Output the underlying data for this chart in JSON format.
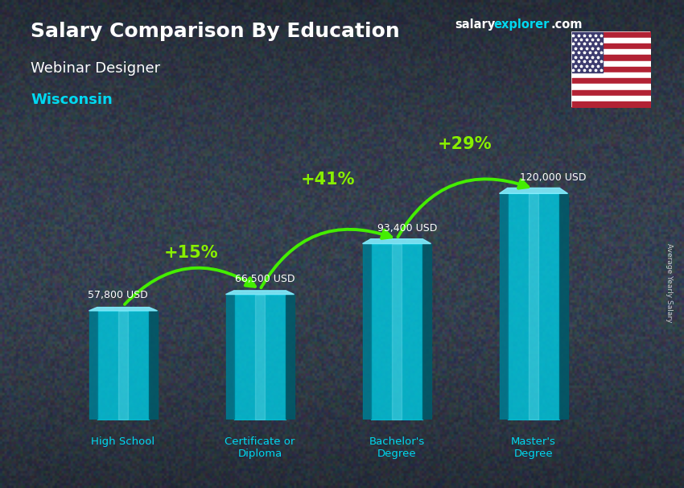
{
  "title": "Salary Comparison By Education",
  "subtitle": "Webinar Designer",
  "location": "Wisconsin",
  "categories": [
    "High School",
    "Certificate or\nDiploma",
    "Bachelor's\nDegree",
    "Master's\nDegree"
  ],
  "values": [
    57800,
    66500,
    93400,
    120000
  ],
  "value_labels": [
    "57,800 USD",
    "66,500 USD",
    "93,400 USD",
    "120,000 USD"
  ],
  "pct_changes": [
    "+15%",
    "+41%",
    "+29%"
  ],
  "bar_face_color": "#00c8e0",
  "bar_left_color": "#007a90",
  "bar_right_color": "#005a6a",
  "bar_top_color": "#80eeff",
  "bar_highlight_color": "#60e8ff",
  "bg_color": "#3a4a5a",
  "title_color": "#ffffff",
  "subtitle_color": "#ffffff",
  "location_color": "#00d8f0",
  "value_label_color": "#ffffff",
  "pct_color": "#88ee00",
  "arrow_color": "#44ee00",
  "xlabel_color": "#00d8f0",
  "ylabel_text": "Average Yearly Salary",
  "brand_salary_color": "#ffffff",
  "brand_explorer_color": "#00d8f0",
  "brand_com_color": "#ffffff",
  "ylim_max": 145000,
  "fig_width": 8.5,
  "fig_height": 6.06,
  "bar_positions": [
    0,
    1,
    2,
    3
  ],
  "bar_width": 0.38,
  "bar_depth": 0.06
}
